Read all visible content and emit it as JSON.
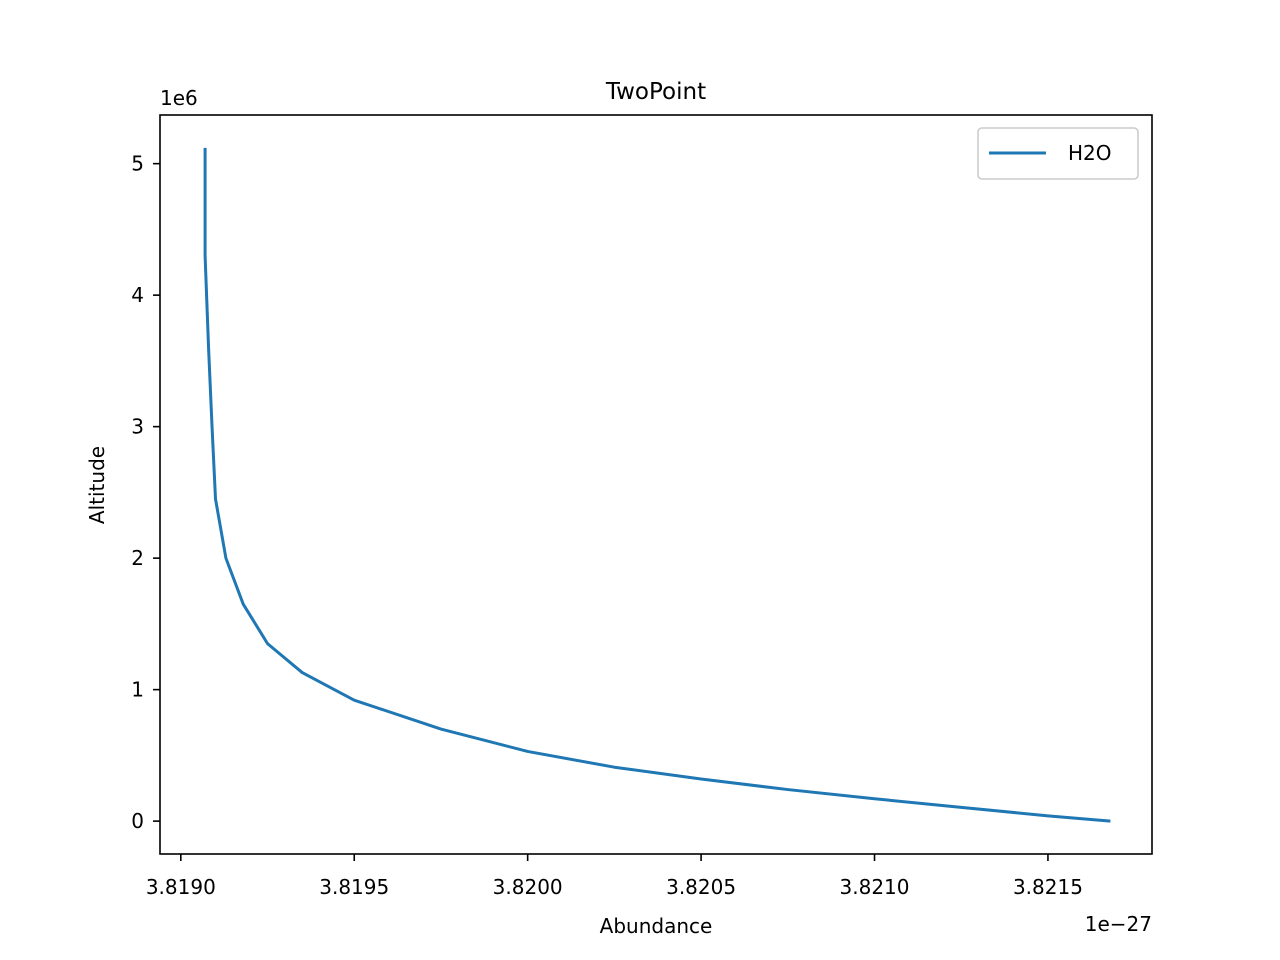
{
  "chart_data": {
    "type": "line",
    "title": "TwoPoint",
    "xlabel": "Abundance",
    "ylabel": "Altitude",
    "x_offset_text": "1e−27",
    "y_offset_text": "1e6",
    "xlim": [
      3.81894e-27,
      3.8218e-27
    ],
    "ylim": [
      -250000,
      5370000
    ],
    "x_ticks": [
      3.819e-27,
      3.8195e-27,
      3.82e-27,
      3.8205e-27,
      3.821e-27,
      3.8215e-27
    ],
    "x_tick_labels": [
      "3.8190",
      "3.8195",
      "3.8200",
      "3.8205",
      "3.8210",
      "3.8215"
    ],
    "y_ticks": [
      0,
      1000000,
      2000000,
      3000000,
      4000000,
      5000000
    ],
    "y_tick_labels": [
      "0",
      "1",
      "2",
      "3",
      "4",
      "5"
    ],
    "grid": false,
    "legend_position": "upper right",
    "series": [
      {
        "name": "H2O",
        "color": "#1f77b4",
        "x": [
          3.82168e-27,
          3.8215e-27,
          3.82125e-27,
          3.821e-27,
          3.82075e-27,
          3.8205e-27,
          3.82025e-27,
          3.82e-27,
          3.81975e-27,
          3.8195e-27,
          3.81935e-27,
          3.81925e-27,
          3.81918e-27,
          3.81913e-27,
          3.8191e-27,
          3.81909e-27,
          3.81908e-27,
          3.81907e-27,
          3.81907e-27
        ],
        "y": [
          0,
          40000,
          105000,
          170000,
          240000,
          320000,
          410000,
          530000,
          700000,
          920000,
          1130000,
          1350000,
          1650000,
          2000000,
          2450000,
          3000000,
          3600000,
          4300000,
          5120000
        ]
      }
    ]
  }
}
